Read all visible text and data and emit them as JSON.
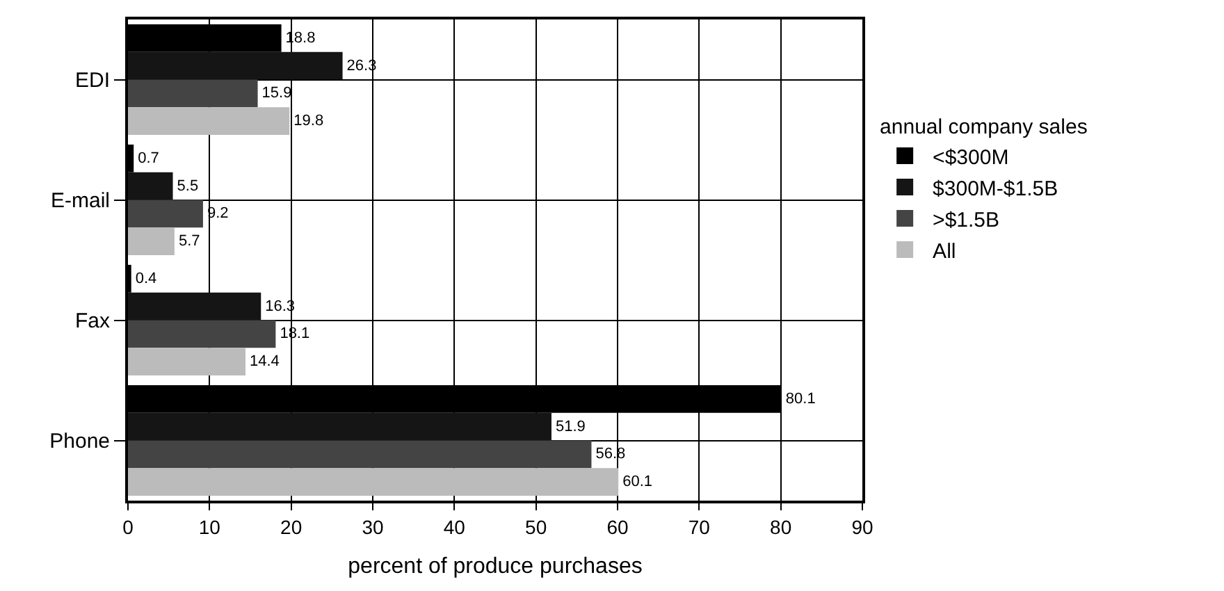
{
  "chart_data": {
    "type": "bar",
    "orientation": "horizontal",
    "xlabel": "percent of produce purchases",
    "legend_title": "annual company sales",
    "categories": [
      "EDI",
      "E-mail",
      "Fax",
      "Phone"
    ],
    "series": [
      {
        "name": "<$300M",
        "color": "#000000",
        "values": [
          18.8,
          0.7,
          0.4,
          80.1
        ]
      },
      {
        "name": "$300M-$1.5B",
        "color": "#151515",
        "values": [
          26.3,
          5.5,
          16.3,
          51.9
        ]
      },
      {
        "name": ">$1.5B",
        "color": "#444444",
        "values": [
          15.9,
          9.2,
          18.1,
          56.8
        ]
      },
      {
        "name": "All",
        "color": "#bbbbbb",
        "values": [
          19.8,
          5.7,
          14.4,
          60.1
        ]
      }
    ],
    "xlim": [
      0,
      90
    ],
    "xticks": [
      0,
      10,
      20,
      30,
      40,
      50,
      60,
      70,
      80,
      90
    ],
    "data_labels": true,
    "grid": true,
    "legend": "right"
  }
}
